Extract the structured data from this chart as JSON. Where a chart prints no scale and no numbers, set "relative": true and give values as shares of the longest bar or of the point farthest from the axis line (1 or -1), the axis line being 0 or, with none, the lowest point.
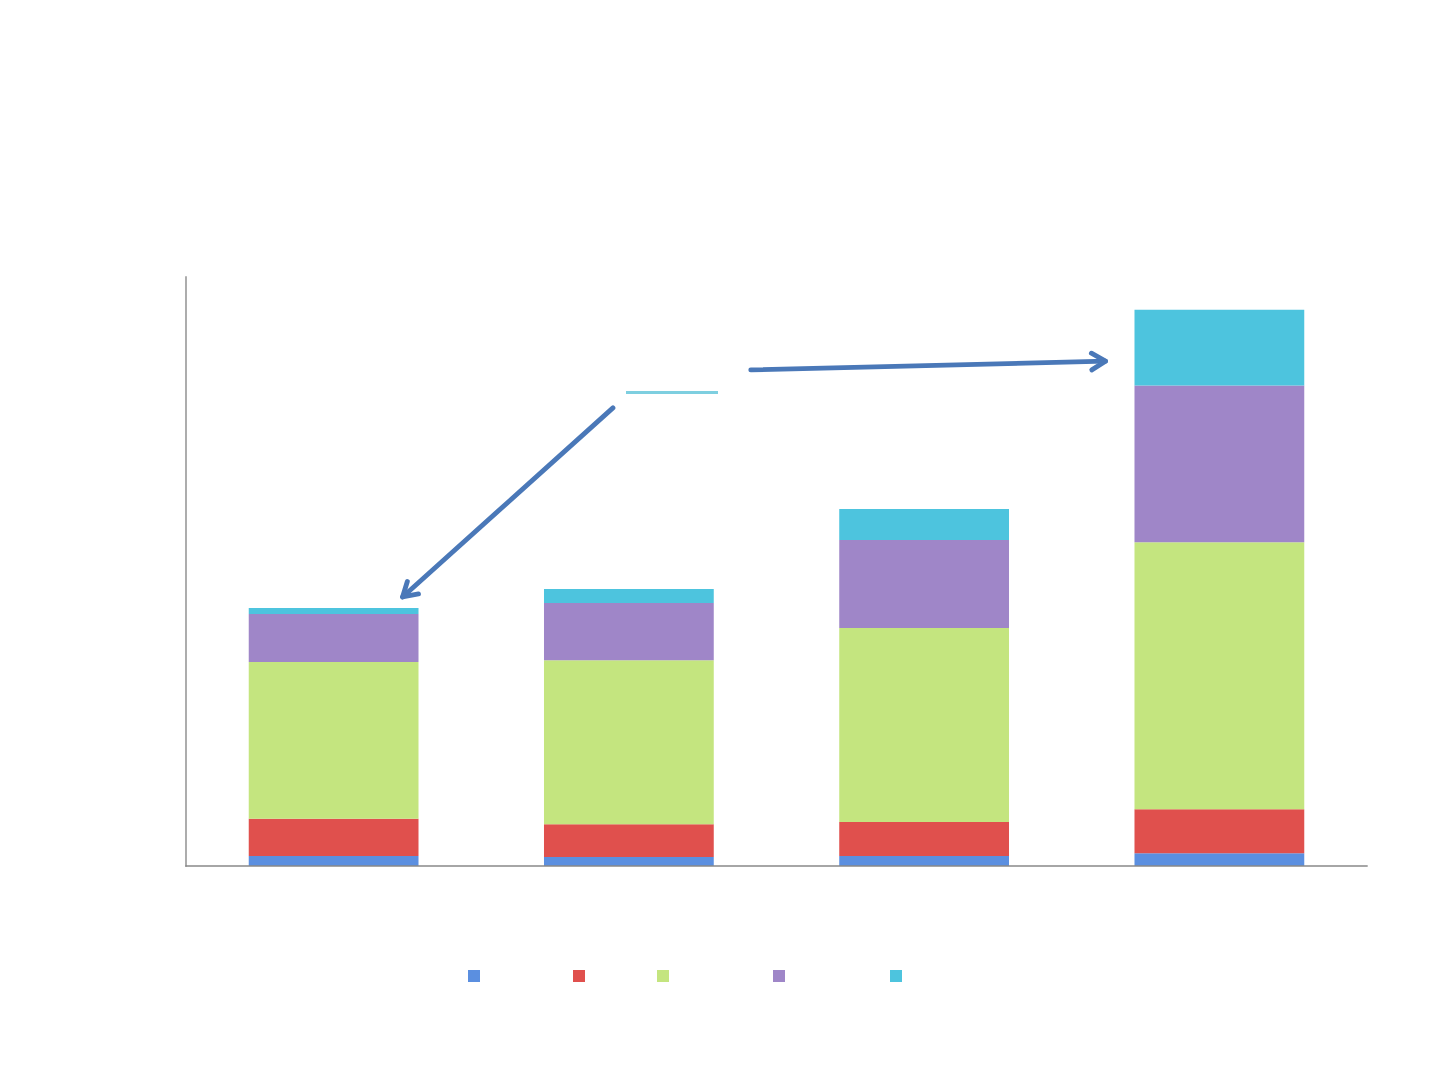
{
  "chart_data": {
    "type": "bar",
    "stacked": true,
    "relative": true,
    "categories": [
      null,
      null,
      null,
      null
    ],
    "series": [
      {
        "color": "#5b8fe0",
        "values": [
          0.018,
          0.016,
          0.018,
          0.023
        ]
      },
      {
        "color": "#e0504d",
        "values": [
          0.067,
          0.059,
          0.061,
          0.079
        ]
      },
      {
        "color": "#c4e57f",
        "values": [
          0.282,
          0.295,
          0.349,
          0.48
        ]
      },
      {
        "color": "#9f86c8",
        "values": [
          0.086,
          0.103,
          0.158,
          0.282
        ]
      },
      {
        "color": "#4dc4de",
        "values": [
          0.011,
          0.025,
          0.056,
          0.136
        ]
      }
    ],
    "grid": false
  }
}
